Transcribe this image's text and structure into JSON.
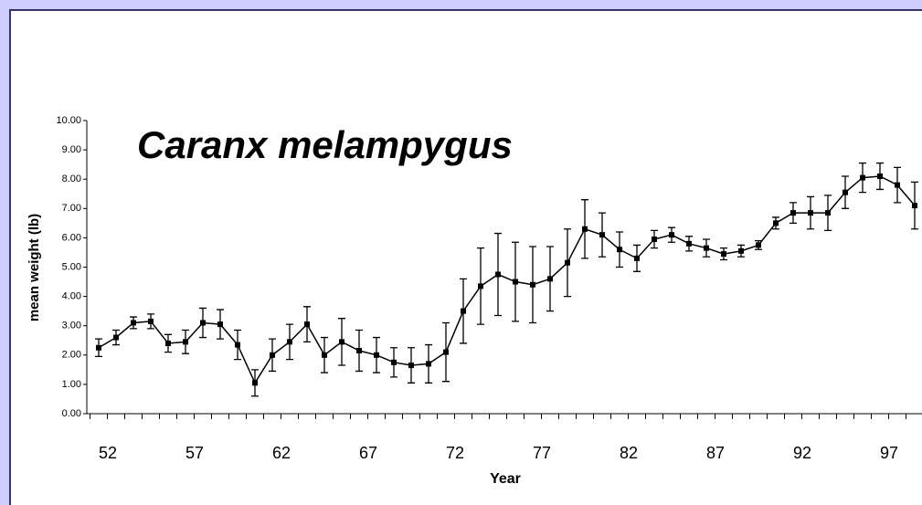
{
  "chart_data": {
    "type": "line",
    "title": "Caranx melampygus",
    "xlabel": "Year",
    "ylabel": "mean weight (lb)",
    "categories": [
      "52",
      null,
      null,
      null,
      null,
      "57",
      null,
      null,
      null,
      null,
      "62",
      null,
      null,
      null,
      null,
      "67",
      null,
      null,
      null,
      null,
      "72",
      null,
      null,
      null,
      null,
      "77",
      null,
      null,
      null,
      null,
      "82",
      null,
      null,
      null,
      null,
      "87",
      null,
      null,
      null,
      null,
      "92",
      null,
      null,
      null,
      null,
      "97",
      null,
      null
    ],
    "values": [
      2.25,
      2.6,
      3.1,
      3.15,
      2.4,
      2.45,
      3.1,
      3.05,
      2.35,
      1.05,
      2.0,
      2.45,
      3.05,
      2.0,
      2.45,
      2.15,
      2.0,
      1.75,
      1.65,
      1.7,
      2.1,
      3.5,
      4.35,
      4.75,
      4.5,
      4.4,
      4.6,
      5.15,
      6.3,
      6.1,
      5.6,
      5.3,
      5.95,
      6.1,
      5.8,
      5.65,
      5.45,
      5.55,
      5.75,
      6.5,
      6.85,
      6.85,
      6.85,
      7.55,
      8.05,
      8.1,
      7.8,
      7.1
    ],
    "errors": [
      0.3,
      0.25,
      0.2,
      0.25,
      0.3,
      0.4,
      0.5,
      0.5,
      0.5,
      0.45,
      0.55,
      0.6,
      0.6,
      0.6,
      0.8,
      0.7,
      0.6,
      0.5,
      0.6,
      0.65,
      1.0,
      1.1,
      1.3,
      1.4,
      1.35,
      1.3,
      1.1,
      1.15,
      1.0,
      0.75,
      0.6,
      0.45,
      0.3,
      0.25,
      0.25,
      0.3,
      0.2,
      0.2,
      0.15,
      0.2,
      0.35,
      0.55,
      0.6,
      0.55,
      0.5,
      0.45,
      0.6,
      0.8
    ],
    "color": "#000000",
    "ylim": [
      0,
      10
    ],
    "yticks": [
      {
        "value": 0,
        "label": "0.00"
      },
      {
        "value": 1,
        "label": "1.00"
      },
      {
        "value": 2,
        "label": "2.00"
      },
      {
        "value": 3,
        "label": "3.00"
      },
      {
        "value": 4,
        "label": "4.00"
      },
      {
        "value": 5,
        "label": "5.00"
      },
      {
        "value": 6,
        "label": "6.00"
      },
      {
        "value": 7,
        "label": "7.00"
      },
      {
        "value": 8,
        "label": "8.00"
      },
      {
        "value": 9,
        "label": "9.00"
      },
      {
        "value": 10,
        "label": "10.00"
      }
    ]
  }
}
